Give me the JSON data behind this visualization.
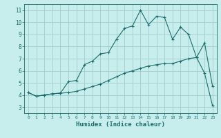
{
  "title": "",
  "xlabel": "Humidex (Indice chaleur)",
  "bg_color": "#c8eded",
  "grid_color": "#a0cccc",
  "line_color": "#1a6b6b",
  "xlim": [
    -0.5,
    23.5
  ],
  "ylim": [
    2.5,
    11.5
  ],
  "xticks": [
    0,
    1,
    2,
    3,
    4,
    5,
    6,
    7,
    8,
    9,
    10,
    11,
    12,
    13,
    14,
    15,
    16,
    17,
    18,
    19,
    20,
    21,
    22,
    23
  ],
  "yticks": [
    3,
    4,
    5,
    6,
    7,
    8,
    9,
    10,
    11
  ],
  "upper_line": [
    [
      0,
      4.2
    ],
    [
      1,
      3.9
    ],
    [
      2,
      4.0
    ],
    [
      3,
      4.1
    ],
    [
      4,
      4.15
    ],
    [
      5,
      5.1
    ],
    [
      6,
      5.2
    ],
    [
      7,
      6.5
    ],
    [
      8,
      6.8
    ],
    [
      9,
      7.4
    ],
    [
      10,
      7.5
    ],
    [
      11,
      8.6
    ],
    [
      12,
      9.5
    ],
    [
      13,
      9.7
    ],
    [
      14,
      11.0
    ],
    [
      15,
      9.8
    ],
    [
      16,
      10.5
    ],
    [
      17,
      10.4
    ],
    [
      18,
      8.6
    ],
    [
      19,
      9.6
    ],
    [
      20,
      9.0
    ],
    [
      21,
      7.1
    ],
    [
      22,
      8.3
    ],
    [
      23,
      4.7
    ]
  ],
  "lower_line": [
    [
      0,
      4.2
    ],
    [
      1,
      3.9
    ],
    [
      2,
      4.0
    ],
    [
      3,
      4.1
    ],
    [
      4,
      4.15
    ],
    [
      5,
      4.2
    ],
    [
      6,
      4.3
    ],
    [
      7,
      4.5
    ],
    [
      8,
      4.7
    ],
    [
      9,
      4.9
    ],
    [
      10,
      5.2
    ],
    [
      11,
      5.5
    ],
    [
      12,
      5.8
    ],
    [
      13,
      6.0
    ],
    [
      14,
      6.2
    ],
    [
      15,
      6.4
    ],
    [
      16,
      6.5
    ],
    [
      17,
      6.6
    ],
    [
      18,
      6.6
    ],
    [
      19,
      6.8
    ],
    [
      20,
      7.0
    ],
    [
      21,
      7.1
    ],
    [
      22,
      5.8
    ],
    [
      23,
      3.1
    ]
  ],
  "xlabel_fontsize": 6.5,
  "xtick_fontsize": 4.5,
  "ytick_fontsize": 5.5
}
